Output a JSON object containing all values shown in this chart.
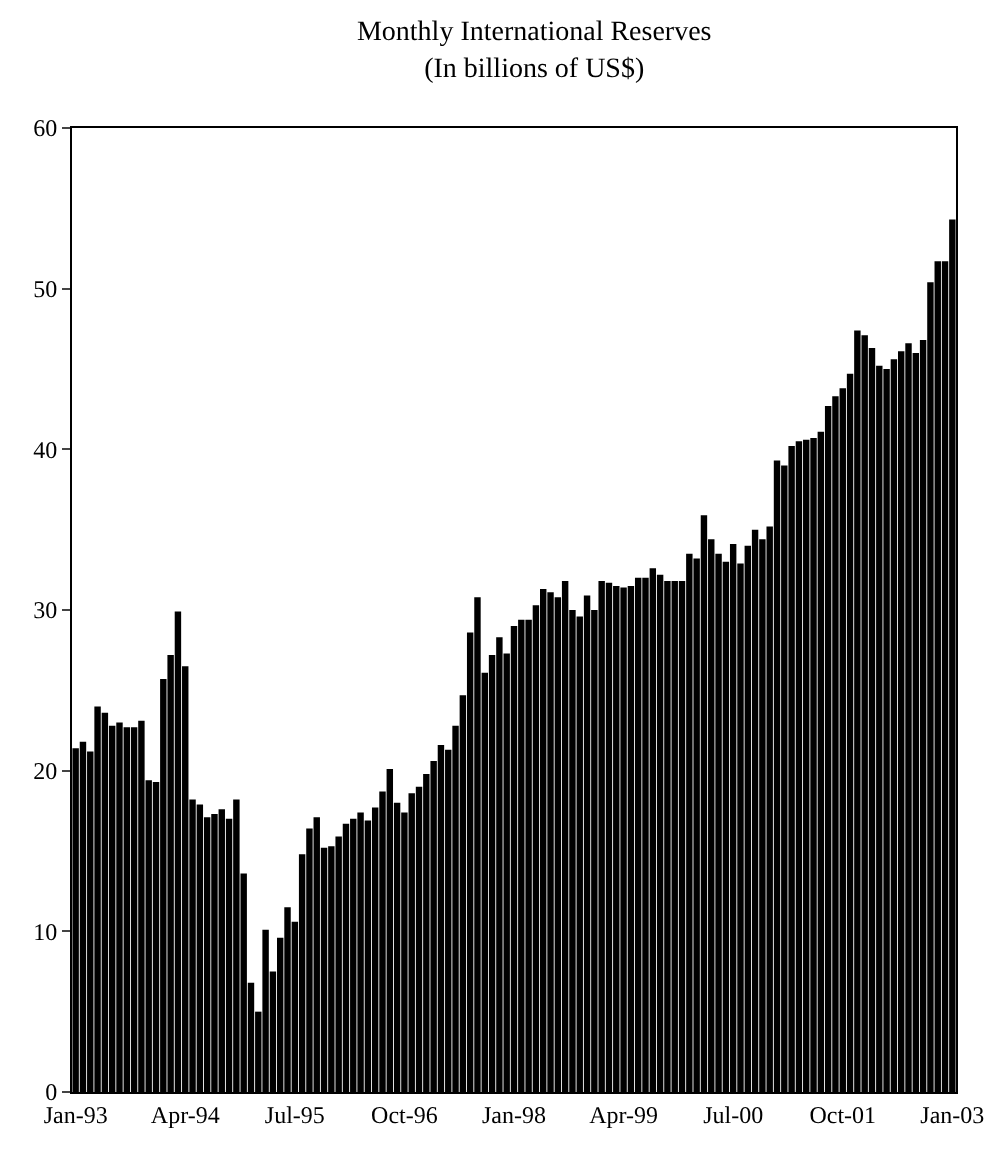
{
  "chart_data": {
    "type": "bar",
    "title": "Monthly International Reserves",
    "subtitle": "(In billions of US$)",
    "categories": [
      "Jan-93",
      null,
      null,
      null,
      null,
      null,
      null,
      null,
      null,
      null,
      null,
      null,
      null,
      null,
      null,
      "Apr-94",
      null,
      null,
      null,
      null,
      null,
      null,
      null,
      null,
      null,
      null,
      null,
      null,
      null,
      null,
      "Jul-95",
      null,
      null,
      null,
      null,
      null,
      null,
      null,
      null,
      null,
      null,
      null,
      null,
      null,
      null,
      "Oct-96",
      null,
      null,
      null,
      null,
      null,
      null,
      null,
      null,
      null,
      null,
      null,
      null,
      null,
      null,
      "Jan-98",
      null,
      null,
      null,
      null,
      null,
      null,
      null,
      null,
      null,
      null,
      null,
      null,
      null,
      null,
      "Apr-99",
      null,
      null,
      null,
      null,
      null,
      null,
      null,
      null,
      null,
      null,
      null,
      null,
      null,
      null,
      "Jul-00",
      null,
      null,
      null,
      null,
      null,
      null,
      null,
      null,
      null,
      null,
      null,
      null,
      null,
      null,
      "Oct-01",
      null,
      null,
      null,
      null,
      null,
      null,
      null,
      null,
      null,
      null,
      null,
      null,
      null,
      null,
      "Jan-03"
    ],
    "values": [
      21.4,
      21.8,
      21.2,
      24.0,
      23.6,
      22.8,
      23.0,
      22.7,
      22.7,
      23.1,
      19.4,
      19.3,
      25.7,
      27.2,
      29.9,
      26.5,
      18.2,
      17.9,
      17.1,
      17.3,
      17.6,
      17.0,
      18.2,
      13.6,
      6.8,
      5.0,
      10.1,
      7.5,
      9.6,
      11.5,
      10.6,
      14.8,
      16.4,
      17.1,
      15.2,
      15.3,
      15.9,
      16.7,
      17.0,
      17.4,
      16.9,
      17.7,
      18.7,
      20.1,
      18.0,
      17.4,
      18.6,
      19.0,
      19.8,
      20.6,
      21.6,
      21.3,
      22.8,
      24.7,
      28.6,
      30.8,
      26.1,
      27.2,
      28.3,
      27.3,
      29.0,
      29.4,
      29.4,
      30.3,
      31.3,
      31.1,
      30.8,
      31.8,
      30.0,
      29.6,
      30.9,
      30.0,
      31.8,
      31.7,
      31.5,
      31.4,
      31.5,
      32.0,
      32.0,
      32.6,
      32.2,
      31.8,
      31.8,
      31.8,
      33.5,
      33.2,
      35.9,
      34.4,
      33.5,
      33.0,
      34.1,
      32.9,
      34.0,
      35.0,
      34.4,
      35.2,
      39.3,
      39.0,
      40.2,
      40.5,
      40.6,
      40.7,
      41.1,
      42.7,
      43.3,
      43.8,
      44.7,
      47.4,
      47.1,
      46.3,
      45.2,
      45.0,
      45.6,
      46.1,
      46.6,
      46.0,
      46.8,
      50.4,
      51.7,
      51.7,
      54.3
    ],
    "color": "#000000",
    "ylim": [
      0,
      60
    ],
    "yticks": [
      0,
      10,
      20,
      30,
      40,
      50,
      60
    ],
    "legend": false
  }
}
